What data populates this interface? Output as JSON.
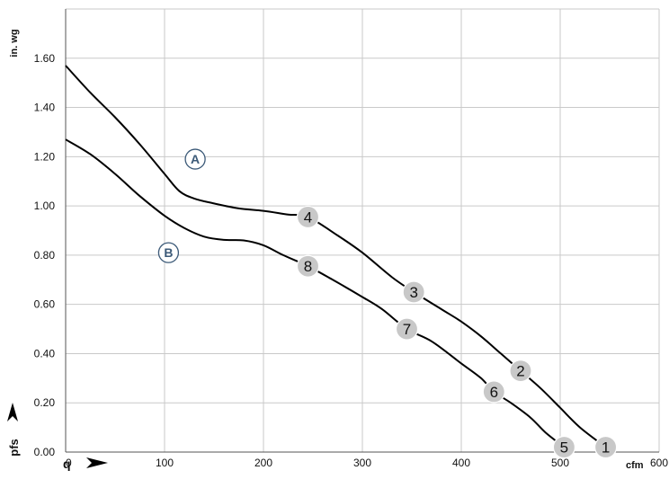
{
  "chart_data": {
    "type": "line",
    "xlabel": "q",
    "ylabel": "pfs",
    "y_unit": "in. wg",
    "x_unit": "cfm",
    "xlim": [
      0,
      600
    ],
    "ylim": [
      0,
      1.8
    ],
    "x_ticks": [
      "0",
      "100",
      "200",
      "300",
      "400",
      "500",
      "600"
    ],
    "y_ticks": [
      "0.00",
      "0.20",
      "0.40",
      "0.60",
      "0.80",
      "1.00",
      "1.20",
      "1.40",
      "1.60"
    ],
    "grid": true,
    "series": [
      {
        "name": "A",
        "color": "#000000",
        "x": [
          0,
          25,
          50,
          75,
          100,
          115,
          130,
          150,
          175,
          200,
          225,
          245,
          275,
          300,
          330,
          352,
          380,
          400,
          420,
          440,
          460,
          480,
          500,
          520,
          546
        ],
        "y": [
          1.57,
          1.46,
          1.36,
          1.25,
          1.13,
          1.06,
          1.03,
          1.01,
          0.99,
          0.98,
          0.965,
          0.955,
          0.88,
          0.81,
          0.71,
          0.65,
          0.58,
          0.53,
          0.47,
          0.4,
          0.33,
          0.26,
          0.18,
          0.1,
          0.02
        ]
      },
      {
        "name": "B",
        "color": "#000000",
        "x": [
          0,
          25,
          50,
          75,
          100,
          120,
          140,
          160,
          180,
          200,
          220,
          245,
          270,
          300,
          320,
          345,
          370,
          400,
          420,
          433,
          450,
          470,
          485,
          504
        ],
        "y": [
          1.27,
          1.21,
          1.13,
          1.04,
          0.96,
          0.91,
          0.875,
          0.862,
          0.86,
          0.84,
          0.8,
          0.755,
          0.7,
          0.63,
          0.58,
          0.5,
          0.45,
          0.36,
          0.3,
          0.245,
          0.2,
          0.14,
          0.08,
          0.02
        ]
      }
    ],
    "operating_points": [
      {
        "label": "1",
        "x": 546,
        "y": 0.02
      },
      {
        "label": "2",
        "x": 460,
        "y": 0.33
      },
      {
        "label": "3",
        "x": 352,
        "y": 0.65
      },
      {
        "label": "4",
        "x": 245,
        "y": 0.955
      },
      {
        "label": "5",
        "x": 504,
        "y": 0.02
      },
      {
        "label": "6",
        "x": 433,
        "y": 0.245
      },
      {
        "label": "7",
        "x": 345,
        "y": 0.5
      },
      {
        "label": "8",
        "x": 245,
        "y": 0.755
      }
    ],
    "curve_labels": [
      {
        "label": "A",
        "x": 131,
        "y": 1.19
      },
      {
        "label": "B",
        "x": 104,
        "y": 0.81
      }
    ]
  }
}
